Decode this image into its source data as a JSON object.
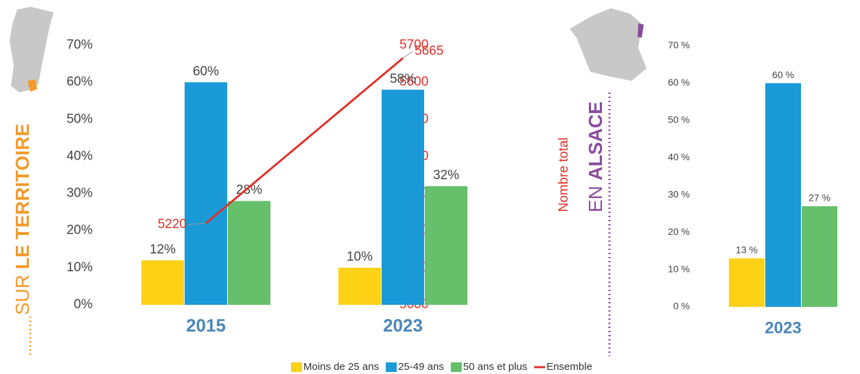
{
  "chart_data": [
    {
      "type": "bar",
      "side_title": {
        "light": "SUR",
        "bold": "LE TERRITOIRE"
      },
      "categories": [
        "2015",
        "2023"
      ],
      "series": [
        {
          "name": "Moins de 25 ans",
          "color": "#fcd116",
          "values": [
            12,
            10
          ],
          "value_labels": [
            "12%",
            "10%"
          ]
        },
        {
          "name": "25-49 ans",
          "color": "#1a9ad6",
          "values": [
            60,
            58
          ],
          "value_labels": [
            "60%",
            "58%"
          ]
        },
        {
          "name": "50 ans et plus",
          "color": "#66bf6a",
          "values": [
            28,
            32
          ],
          "value_labels": [
            "28%",
            "32%"
          ]
        },
        {
          "name": "Ensemble",
          "type": "line",
          "axis": "y2",
          "color": "#e0302a",
          "values": [
            5220,
            5665
          ]
        }
      ],
      "ylim": [
        0,
        70
      ],
      "yticks": [
        {
          "value": 0,
          "label": "0%"
        },
        {
          "value": 10,
          "label": "10%"
        },
        {
          "value": 20,
          "label": "20%"
        },
        {
          "value": 30,
          "label": "30%"
        },
        {
          "value": 40,
          "label": "40%"
        },
        {
          "value": 50,
          "label": "50%"
        },
        {
          "value": 60,
          "label": "60%"
        },
        {
          "value": 70,
          "label": "70%"
        }
      ],
      "y2lim": [
        5000,
        5700
      ],
      "y2ticks": [
        5000,
        5100,
        5200,
        5300,
        5400,
        5500,
        5600,
        5700
      ],
      "y2label": "Nombre total",
      "legend": "bottom"
    },
    {
      "type": "bar",
      "side_title": {
        "light": "EN",
        "bold": "ALSACE"
      },
      "categories": [
        "2023"
      ],
      "series": [
        {
          "color": "#fcd116",
          "values": [
            13
          ],
          "value_labels": [
            "13 %"
          ]
        },
        {
          "color": "#1a9ad6",
          "values": [
            60
          ],
          "value_labels": [
            "60 %"
          ]
        },
        {
          "color": "#66bf6a",
          "values": [
            27
          ],
          "value_labels": [
            "27 %"
          ]
        }
      ],
      "ylim": [
        0,
        70
      ],
      "yticks": [
        {
          "value": 0,
          "label": "0 %"
        },
        {
          "value": 10,
          "label": "10 %"
        },
        {
          "value": 20,
          "label": "20 %"
        },
        {
          "value": 30,
          "label": "30 %"
        },
        {
          "value": 40,
          "label": "40 %"
        },
        {
          "value": 50,
          "label": "50 %"
        },
        {
          "value": 60,
          "label": "60 %"
        },
        {
          "value": 70,
          "label": "70 %"
        }
      ]
    }
  ]
}
